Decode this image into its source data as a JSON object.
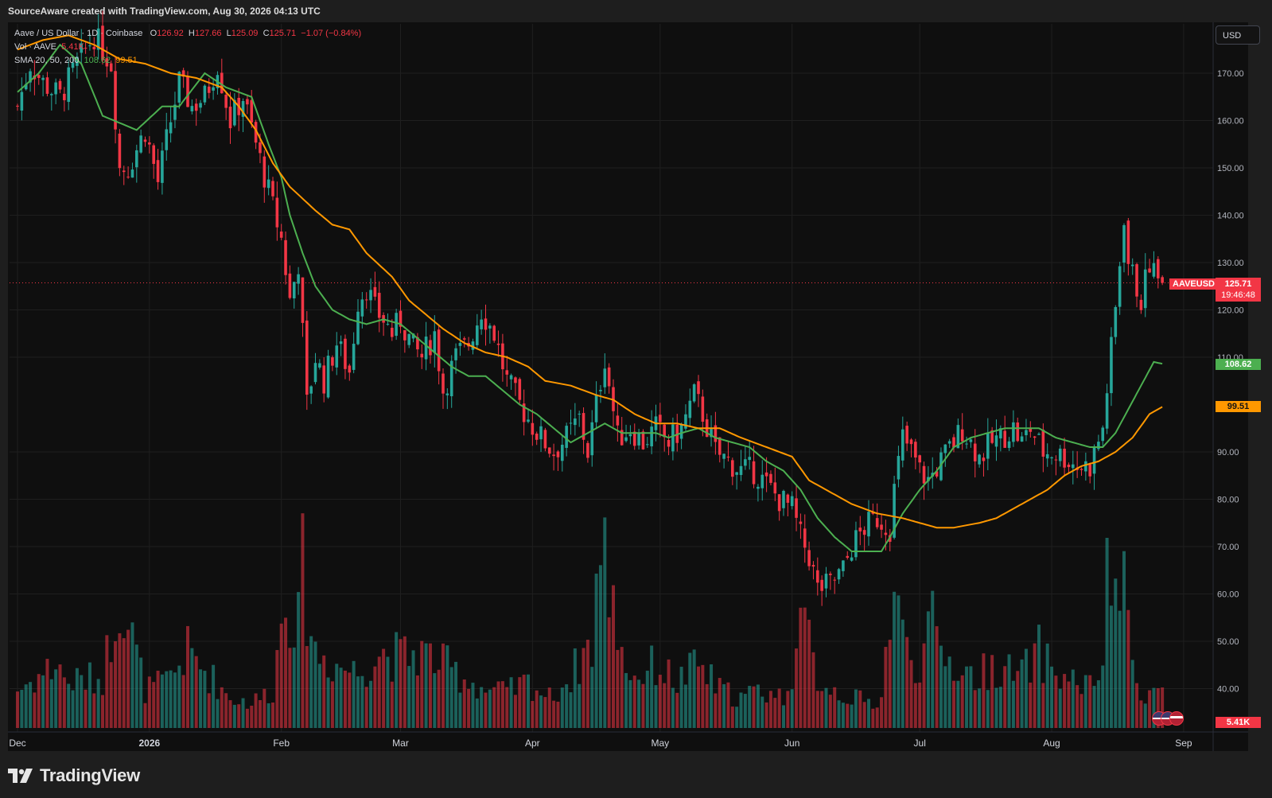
{
  "header": {
    "attribution": "SourceAware created with TradingView.com, Aug 30, 2026 04:13 UTC"
  },
  "legend": {
    "symbol": "Aave / US Dollar · 1D · Coinbase",
    "o_label": "O",
    "o": "126.92",
    "h_label": "H",
    "h": "127.66",
    "l_label": "L",
    "l": "125.09",
    "c_label": "C",
    "c": "125.71",
    "change": "−1.07 (−0.84%)",
    "vol_label": "Vol · AAVE",
    "vol": "5.41K",
    "sma_label": "SMA 20, 50, 200",
    "sma20": "108.62",
    "sma50": "99.51"
  },
  "currency_button": "USD",
  "price_labels": {
    "symbol_tag": "AAVEUSD",
    "last_price": "125.71",
    "countdown": "19:46:48",
    "sma20": "108.62",
    "sma50": "99.51",
    "volume": "5.41K"
  },
  "footer": {
    "brand": "TradingView"
  },
  "colors": {
    "up": "#26a69a",
    "down": "#f23645",
    "sma20": "#4caf50",
    "sma50": "#ff9800",
    "bg": "#0f0f0f"
  },
  "chart_data": {
    "type": "candlestick",
    "title": "Aave / US Dollar · 1D · Coinbase",
    "y_axis": {
      "ticks": [
        170,
        160,
        150,
        140,
        130,
        120,
        110,
        90,
        80,
        70,
        60,
        50,
        40
      ],
      "tick_format": "2dp",
      "range": [
        37,
        176
      ],
      "unit": "USD"
    },
    "x_axis": {
      "ticks": [
        "Dec",
        "2026",
        "Feb",
        "Mar",
        "Apr",
        "May",
        "Jun",
        "Jul",
        "Aug",
        "Sep"
      ],
      "tick_days": [
        0,
        31,
        62,
        90,
        121,
        151,
        182,
        212,
        243,
        274
      ]
    },
    "x_range_days": [
      0,
      281
    ],
    "close_anchors": [
      [
        0,
        163
      ],
      [
        3,
        172
      ],
      [
        6,
        168
      ],
      [
        10,
        165
      ],
      [
        14,
        172
      ],
      [
        18,
        178
      ],
      [
        22,
        172
      ],
      [
        24,
        150
      ],
      [
        26,
        150
      ],
      [
        30,
        158
      ],
      [
        33,
        147
      ],
      [
        36,
        160
      ],
      [
        38,
        168
      ],
      [
        41,
        163
      ],
      [
        44,
        165
      ],
      [
        47,
        172
      ],
      [
        50,
        160
      ],
      [
        53,
        165
      ],
      [
        56,
        155
      ],
      [
        59,
        145
      ],
      [
        62,
        135
      ],
      [
        64,
        122
      ],
      [
        66,
        130
      ],
      [
        68,
        100
      ],
      [
        70,
        110
      ],
      [
        72,
        105
      ],
      [
        75,
        113
      ],
      [
        78,
        107
      ],
      [
        80,
        122
      ],
      [
        82,
        125
      ],
      [
        84,
        120
      ],
      [
        86,
        118
      ],
      [
        88,
        115
      ],
      [
        90,
        118
      ],
      [
        93,
        112
      ],
      [
        95,
        110
      ],
      [
        98,
        115
      ],
      [
        100,
        103
      ],
      [
        103,
        110
      ],
      [
        106,
        113
      ],
      [
        109,
        120
      ],
      [
        112,
        115
      ],
      [
        115,
        105
      ],
      [
        118,
        100
      ],
      [
        120,
        97
      ],
      [
        123,
        93
      ],
      [
        126,
        90
      ],
      [
        129,
        93
      ],
      [
        132,
        97
      ],
      [
        134,
        90
      ],
      [
        136,
        100
      ],
      [
        138,
        110
      ],
      [
        141,
        93
      ],
      [
        144,
        95
      ],
      [
        147,
        92
      ],
      [
        150,
        95
      ],
      [
        153,
        92
      ],
      [
        156,
        95
      ],
      [
        159,
        102
      ],
      [
        161,
        98
      ],
      [
        164,
        90
      ],
      [
        167,
        88
      ],
      [
        170,
        86
      ],
      [
        173,
        86
      ],
      [
        176,
        83
      ],
      [
        179,
        80
      ],
      [
        182,
        78
      ],
      [
        184,
        72
      ],
      [
        186,
        68
      ],
      [
        188,
        61
      ],
      [
        191,
        62
      ],
      [
        194,
        65
      ],
      [
        196,
        70
      ],
      [
        199,
        74
      ],
      [
        202,
        76
      ],
      [
        205,
        74
      ],
      [
        206,
        82
      ],
      [
        208,
        93
      ],
      [
        210,
        90
      ],
      [
        212,
        86
      ],
      [
        214,
        84
      ],
      [
        217,
        88
      ],
      [
        220,
        92
      ],
      [
        222,
        95
      ],
      [
        224,
        92
      ],
      [
        226,
        89
      ],
      [
        229,
        92
      ],
      [
        231,
        93
      ],
      [
        234,
        95
      ],
      [
        236,
        92
      ],
      [
        238,
        95
      ],
      [
        241,
        90
      ],
      [
        243,
        90
      ],
      [
        246,
        89
      ],
      [
        249,
        87
      ],
      [
        252,
        87
      ],
      [
        255,
        95
      ],
      [
        258,
        120
      ],
      [
        260,
        140
      ],
      [
        261,
        130
      ],
      [
        264,
        122
      ],
      [
        266,
        130
      ],
      [
        268,
        126
      ],
      [
        269,
        125.71
      ]
    ],
    "volume_anchors": [
      [
        0,
        15
      ],
      [
        10,
        26
      ],
      [
        11,
        18
      ],
      [
        20,
        20
      ],
      [
        24,
        55
      ],
      [
        30,
        15
      ],
      [
        35,
        18
      ],
      [
        40,
        30
      ],
      [
        50,
        12
      ],
      [
        55,
        10
      ],
      [
        60,
        15
      ],
      [
        63,
        55
      ],
      [
        66,
        40
      ],
      [
        67,
        62
      ],
      [
        68,
        50
      ],
      [
        70,
        30
      ],
      [
        75,
        25
      ],
      [
        80,
        22
      ],
      [
        85,
        30
      ],
      [
        90,
        28
      ],
      [
        95,
        30
      ],
      [
        100,
        25
      ],
      [
        105,
        20
      ],
      [
        110,
        15
      ],
      [
        115,
        14
      ],
      [
        120,
        18
      ],
      [
        125,
        12
      ],
      [
        130,
        20
      ],
      [
        133,
        30
      ],
      [
        135,
        33
      ],
      [
        136,
        58
      ],
      [
        138,
        67
      ],
      [
        140,
        48
      ],
      [
        143,
        25
      ],
      [
        145,
        20
      ],
      [
        150,
        25
      ],
      [
        155,
        18
      ],
      [
        160,
        25
      ],
      [
        165,
        15
      ],
      [
        170,
        12
      ],
      [
        175,
        15
      ],
      [
        180,
        12
      ],
      [
        183,
        30
      ],
      [
        185,
        40
      ],
      [
        188,
        20
      ],
      [
        192,
        15
      ],
      [
        196,
        12
      ],
      [
        200,
        10
      ],
      [
        203,
        12
      ],
      [
        205,
        45
      ],
      [
        206,
        55
      ],
      [
        208,
        35
      ],
      [
        210,
        30
      ],
      [
        212,
        25
      ],
      [
        215,
        40
      ],
      [
        217,
        30
      ],
      [
        220,
        25
      ],
      [
        225,
        20
      ],
      [
        230,
        25
      ],
      [
        235,
        20
      ],
      [
        238,
        25
      ],
      [
        240,
        30
      ],
      [
        245,
        20
      ],
      [
        250,
        18
      ],
      [
        253,
        15
      ],
      [
        255,
        30
      ],
      [
        256,
        55
      ],
      [
        258,
        58
      ],
      [
        260,
        52
      ],
      [
        262,
        25
      ],
      [
        264,
        15
      ],
      [
        269,
        14
      ]
    ],
    "volume_unit": "K AAVE",
    "volume_max_reference": 70,
    "sma_series": [
      {
        "name": "SMA 20",
        "color": "#4caf50",
        "anchors": [
          [
            0,
            166
          ],
          [
            5,
            170
          ],
          [
            10,
            176
          ],
          [
            15,
            172
          ],
          [
            20,
            161
          ],
          [
            28,
            158
          ],
          [
            34,
            163
          ],
          [
            38,
            163
          ],
          [
            44,
            170
          ],
          [
            49,
            167
          ],
          [
            55,
            165
          ],
          [
            59,
            155
          ],
          [
            62,
            148
          ],
          [
            64,
            140
          ],
          [
            67,
            132
          ],
          [
            70,
            125
          ],
          [
            74,
            120
          ],
          [
            78,
            118
          ],
          [
            82,
            117
          ],
          [
            86,
            118
          ],
          [
            90,
            117
          ],
          [
            94,
            114
          ],
          [
            98,
            111
          ],
          [
            102,
            108
          ],
          [
            106,
            106
          ],
          [
            110,
            106
          ],
          [
            114,
            103
          ],
          [
            118,
            100
          ],
          [
            122,
            98
          ],
          [
            126,
            95
          ],
          [
            130,
            92
          ],
          [
            134,
            94
          ],
          [
            138,
            96
          ],
          [
            142,
            94
          ],
          [
            146,
            94
          ],
          [
            150,
            94
          ],
          [
            153,
            93
          ],
          [
            156,
            94
          ],
          [
            160,
            95
          ],
          [
            164,
            93
          ],
          [
            168,
            92
          ],
          [
            172,
            91
          ],
          [
            176,
            88
          ],
          [
            180,
            86
          ],
          [
            184,
            82
          ],
          [
            188,
            76
          ],
          [
            192,
            72
          ],
          [
            196,
            69
          ],
          [
            200,
            69
          ],
          [
            203,
            69
          ],
          [
            205,
            72
          ],
          [
            208,
            77
          ],
          [
            212,
            82
          ],
          [
            216,
            86
          ],
          [
            220,
            91
          ],
          [
            224,
            93
          ],
          [
            228,
            94
          ],
          [
            232,
            95
          ],
          [
            236,
            95
          ],
          [
            240,
            95
          ],
          [
            244,
            93
          ],
          [
            248,
            92
          ],
          [
            252,
            91
          ],
          [
            255,
            91
          ],
          [
            258,
            94
          ],
          [
            261,
            99
          ],
          [
            264,
            104
          ],
          [
            267,
            109
          ],
          [
            269,
            108.62
          ]
        ]
      },
      {
        "name": "SMA 50",
        "color": "#ff9800",
        "anchors": [
          [
            0,
            175
          ],
          [
            6,
            177
          ],
          [
            12,
            178
          ],
          [
            18,
            176
          ],
          [
            24,
            173
          ],
          [
            30,
            172
          ],
          [
            36,
            170
          ],
          [
            42,
            169
          ],
          [
            48,
            167
          ],
          [
            52,
            163
          ],
          [
            56,
            158
          ],
          [
            60,
            151
          ],
          [
            64,
            146
          ],
          [
            70,
            141
          ],
          [
            74,
            138
          ],
          [
            78,
            137
          ],
          [
            82,
            132
          ],
          [
            88,
            127
          ],
          [
            92,
            122
          ],
          [
            96,
            119
          ],
          [
            100,
            116
          ],
          [
            105,
            113
          ],
          [
            110,
            111
          ],
          [
            115,
            110
          ],
          [
            120,
            108
          ],
          [
            124,
            105
          ],
          [
            130,
            104
          ],
          [
            136,
            102
          ],
          [
            140,
            101
          ],
          [
            145,
            98
          ],
          [
            150,
            96
          ],
          [
            155,
            96
          ],
          [
            160,
            95
          ],
          [
            165,
            95
          ],
          [
            170,
            93
          ],
          [
            176,
            91
          ],
          [
            182,
            89
          ],
          [
            186,
            84
          ],
          [
            190,
            82
          ],
          [
            196,
            79
          ],
          [
            202,
            77
          ],
          [
            208,
            76
          ],
          [
            212,
            75
          ],
          [
            216,
            74
          ],
          [
            220,
            74
          ],
          [
            226,
            75
          ],
          [
            230,
            76
          ],
          [
            236,
            79
          ],
          [
            242,
            82
          ],
          [
            246,
            85
          ],
          [
            250,
            87
          ],
          [
            254,
            88
          ],
          [
            258,
            90
          ],
          [
            262,
            93
          ],
          [
            266,
            98
          ],
          [
            269,
            99.51
          ]
        ]
      }
    ]
  }
}
